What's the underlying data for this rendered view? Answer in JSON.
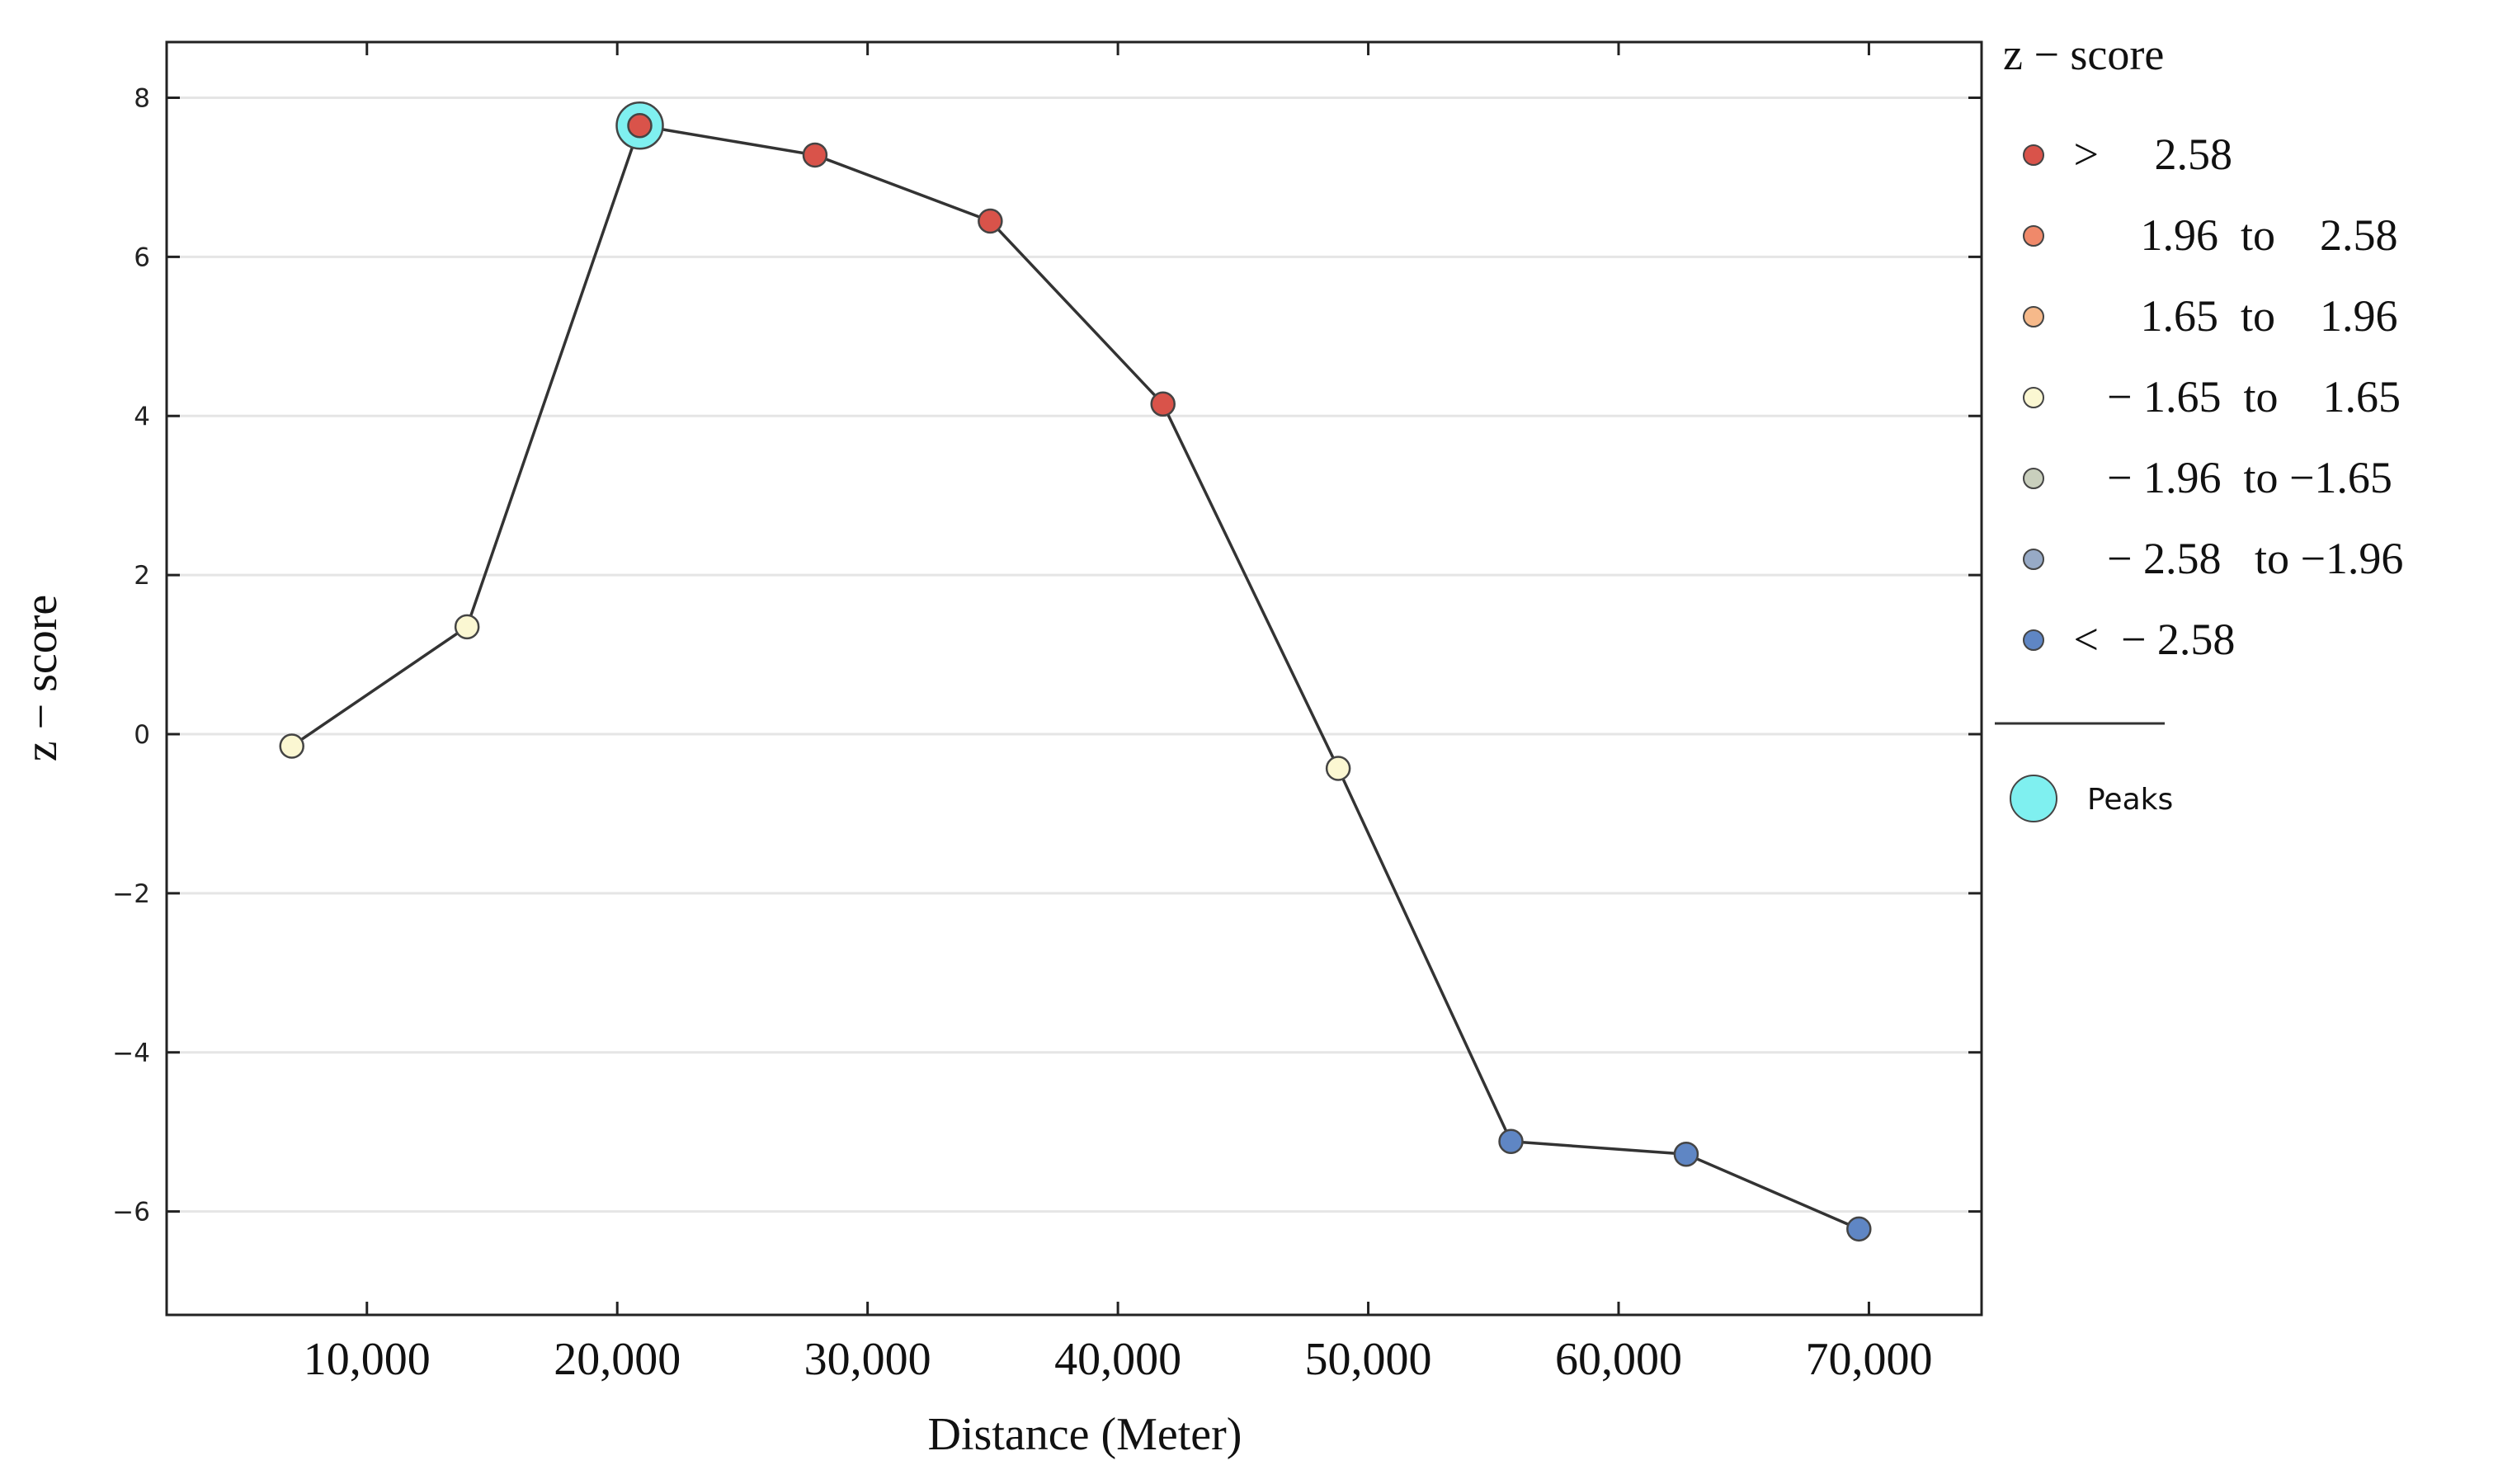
{
  "chart_data": {
    "type": "line",
    "title": "",
    "xlabel": "Distance (Meter)",
    "ylabel": "z − score",
    "xlim": [
      2000,
      74500
    ],
    "ylim": [
      -7.3,
      8.7
    ],
    "x_ticks": [
      {
        "value": 10000,
        "label": "10,000"
      },
      {
        "value": 20000,
        "label": "20,000"
      },
      {
        "value": 30000,
        "label": "30,000"
      },
      {
        "value": 40000,
        "label": "40,000"
      },
      {
        "value": 50000,
        "label": "50,000"
      },
      {
        "value": 60000,
        "label": "60,000"
      },
      {
        "value": 70000,
        "label": "70,000"
      }
    ],
    "y_ticks": [
      {
        "value": 8,
        "label": "8"
      },
      {
        "value": 6,
        "label": "6"
      },
      {
        "value": 4,
        "label": "4"
      },
      {
        "value": 2,
        "label": "2"
      },
      {
        "value": 0,
        "label": "0"
      },
      {
        "value": -2,
        "label": "−2"
      },
      {
        "value": -4,
        "label": "−4"
      },
      {
        "value": -6,
        "label": "−6"
      }
    ],
    "grid": true,
    "series": [
      {
        "name": "z-score",
        "points": [
          {
            "x": 7000,
            "y": -0.15,
            "class": 3
          },
          {
            "x": 14000,
            "y": 1.35,
            "class": 3
          },
          {
            "x": 20900,
            "y": 7.65,
            "class": 0,
            "peak": true
          },
          {
            "x": 27900,
            "y": 7.28,
            "class": 0
          },
          {
            "x": 34900,
            "y": 6.45,
            "class": 0
          },
          {
            "x": 41800,
            "y": 4.15,
            "class": 0
          },
          {
            "x": 48800,
            "y": -0.43,
            "class": 3
          },
          {
            "x": 55700,
            "y": -5.12,
            "class": 6
          },
          {
            "x": 62700,
            "y": -5.28,
            "class": 6
          },
          {
            "x": 69600,
            "y": -6.22,
            "class": 6
          }
        ]
      }
    ],
    "legend": {
      "title": "z − score",
      "position": "right",
      "items": [
        {
          "text": " >     2.58",
          "color": "#d9534a"
        },
        {
          "text": "       1.96  to    2.58",
          "color": "#f0896a"
        },
        {
          "text": "       1.65  to    1.96",
          "color": "#f6b98a"
        },
        {
          "text": "    − 1.65  to    1.65",
          "color": "#fbf7d2"
        },
        {
          "text": "    − 1.96  to −1.65",
          "color": "#c9cfbd"
        },
        {
          "text": "    − 2.58   to −1.96",
          "color": "#97aac6"
        },
        {
          "text": " <  − 2.58",
          "color": "#5f86c4"
        }
      ],
      "peaks_label": "Peaks",
      "peak_color": "#7ff0f0"
    }
  },
  "colors": {
    "line": "#333333",
    "grid": "#e5e5e5",
    "axis": "#222222",
    "marker_edge": "#444444"
  }
}
